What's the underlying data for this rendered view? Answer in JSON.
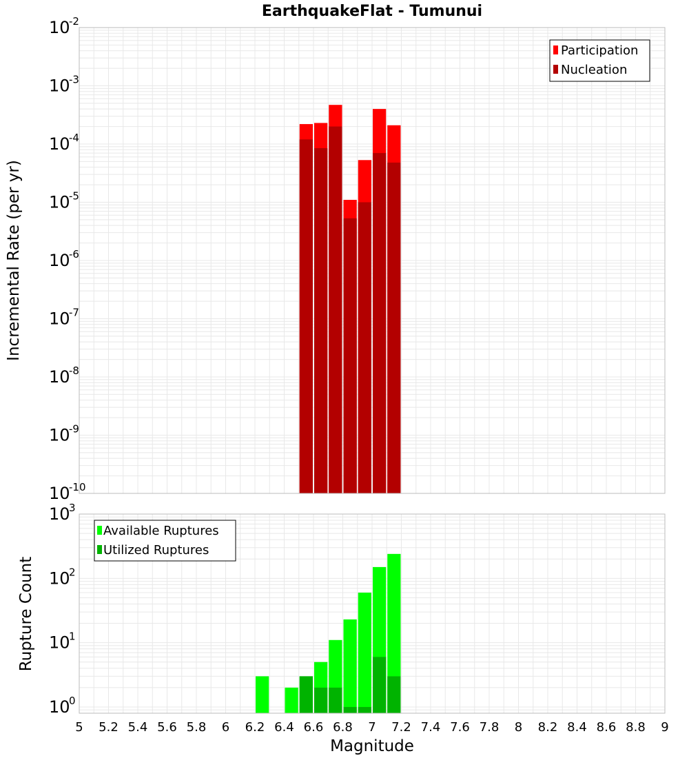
{
  "title": "EarthquakeFlat - Tumunui",
  "x_axis": {
    "label": "Magnitude",
    "range": [
      5,
      9
    ],
    "ticks": [
      "5",
      "5.2",
      "5.4",
      "5.6",
      "5.8",
      "6",
      "6.2",
      "6.4",
      "6.6",
      "6.8",
      "7",
      "7.2",
      "7.4",
      "7.6",
      "7.8",
      "8",
      "8.2",
      "8.4",
      "8.6",
      "8.8",
      "9"
    ]
  },
  "top_panel": {
    "ylabel": "Incremental Rate (per yr)",
    "legend": [
      "Participation",
      "Nucleation"
    ],
    "y_ticks": [
      {
        "base": "10",
        "exp": "-10"
      },
      {
        "base": "10",
        "exp": "-9"
      },
      {
        "base": "10",
        "exp": "-8"
      },
      {
        "base": "10",
        "exp": "-7"
      },
      {
        "base": "10",
        "exp": "-6"
      },
      {
        "base": "10",
        "exp": "-5"
      },
      {
        "base": "10",
        "exp": "-4"
      },
      {
        "base": "10",
        "exp": "-3"
      },
      {
        "base": "10",
        "exp": "-2"
      }
    ]
  },
  "bottom_panel": {
    "ylabel": "Rupture Count",
    "legend": [
      "Available Ruptures",
      "Utilized Ruptures"
    ],
    "y_ticks": [
      {
        "base": "10",
        "exp": "0"
      },
      {
        "base": "10",
        "exp": "1"
      },
      {
        "base": "10",
        "exp": "2"
      },
      {
        "base": "10",
        "exp": "3"
      }
    ]
  },
  "colors": {
    "participation": "#ff0000",
    "nucleation": "#b30000",
    "available": "#00ff00",
    "utilized": "#00b300",
    "grid": "#e8e8e8",
    "frame": "#bbbbbb"
  },
  "chart_data": [
    {
      "type": "bar",
      "ylabel": "Incremental Rate (per yr)",
      "xlabel": "",
      "yscale": "log",
      "ylim": [
        1e-10,
        0.01
      ],
      "xlim": [
        5,
        9
      ],
      "bin_width": 0.1,
      "x": [
        6.55,
        6.65,
        6.75,
        6.85,
        6.95,
        7.05,
        7.15
      ],
      "series": [
        {
          "name": "Participation",
          "values": [
            0.00022,
            0.00023,
            0.00047,
            1.1e-05,
            5.3e-05,
            0.0004,
            0.00021
          ]
        },
        {
          "name": "Nucleation",
          "values": [
            0.00012,
            8.5e-05,
            0.0002,
            5.3e-06,
            1e-05,
            7e-05,
            4.8e-05
          ]
        }
      ],
      "legend_position": "top-right",
      "grid": true
    },
    {
      "type": "bar",
      "ylabel": "Rupture Count",
      "xlabel": "Magnitude",
      "yscale": "log",
      "ylim": [
        0.8,
        1000
      ],
      "xlim": [
        5,
        9
      ],
      "bin_width": 0.1,
      "x": [
        6.25,
        6.35,
        6.45,
        6.55,
        6.65,
        6.75,
        6.85,
        6.95,
        7.05,
        7.15
      ],
      "series": [
        {
          "name": "Available Ruptures",
          "values": [
            3,
            0,
            2,
            3,
            5,
            11,
            23,
            60,
            150,
            240
          ]
        },
        {
          "name": "Utilized Ruptures",
          "values": [
            0,
            0,
            0,
            3,
            2,
            2,
            1,
            1,
            6,
            3
          ]
        }
      ],
      "legend_position": "top-left",
      "grid": true
    }
  ]
}
